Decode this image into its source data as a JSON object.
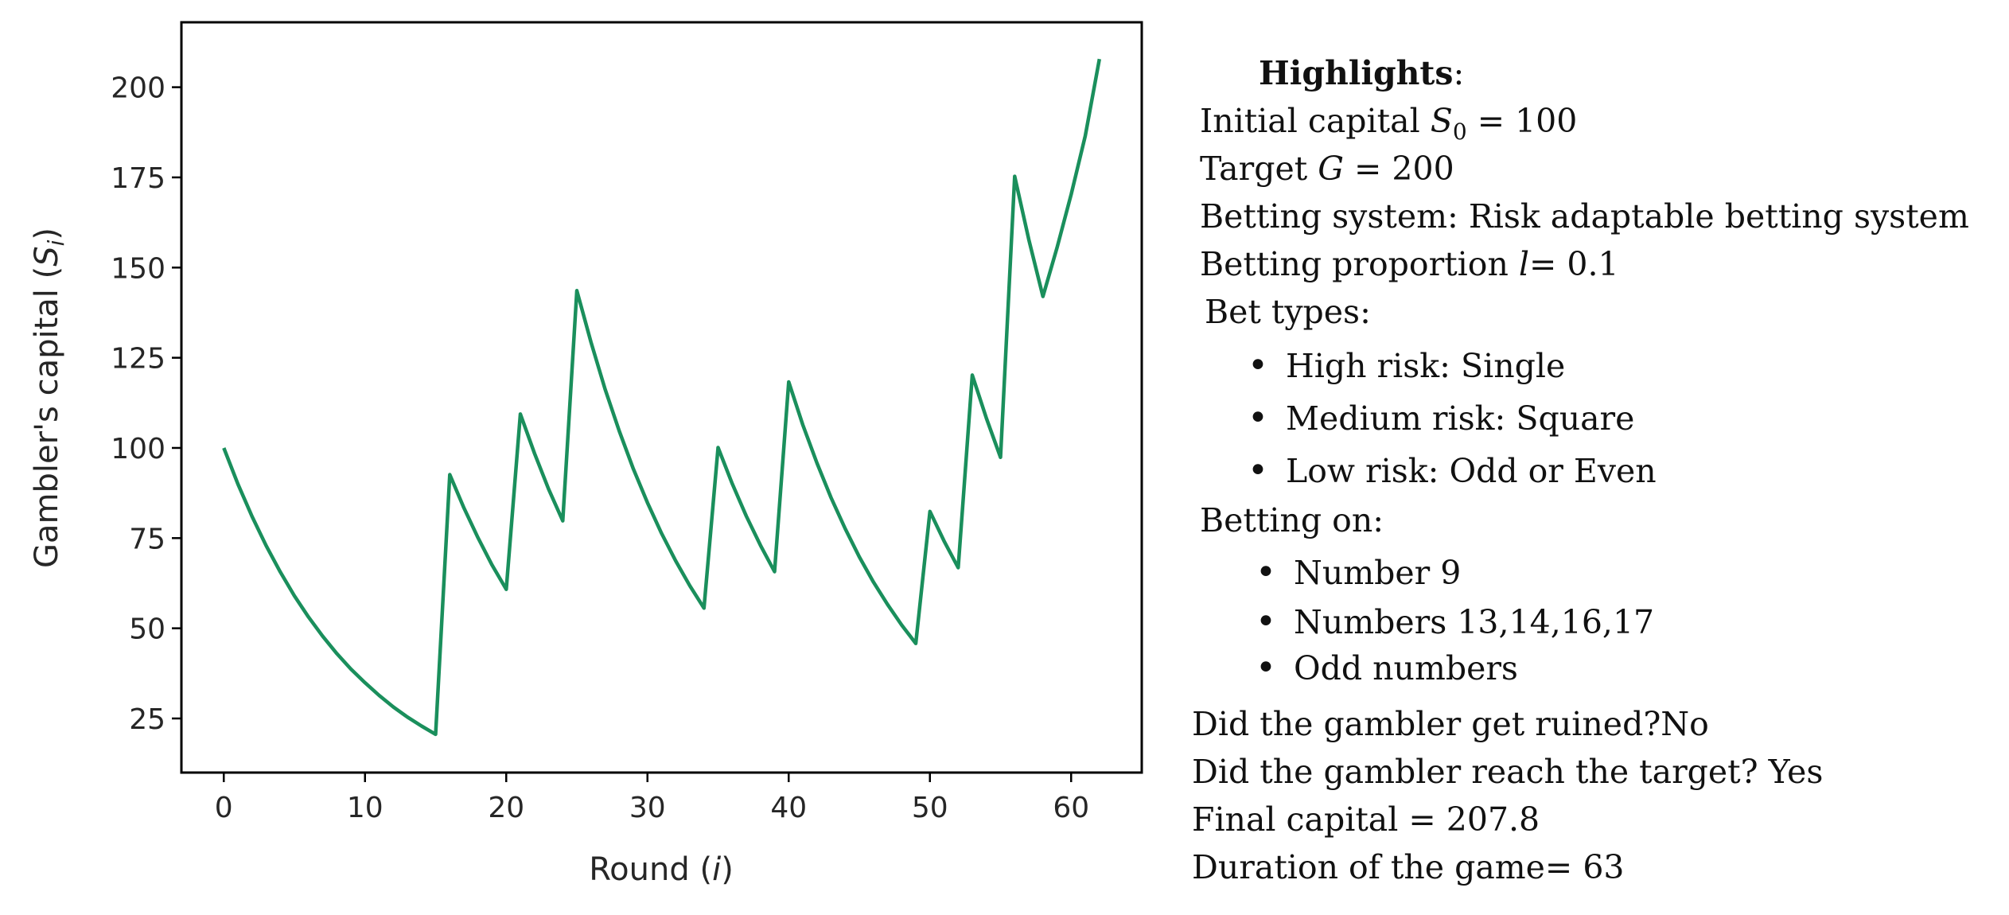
{
  "chart_data": {
    "type": "line",
    "xlabel": "Round (i)",
    "ylabel": "Gambler's capital (S_i)",
    "xlabel_parts": {
      "text": "Round ",
      "var": "i"
    },
    "ylabel_parts": {
      "text": "Gambler's capital ",
      "var": "S",
      "sub": "i"
    },
    "xlim": [
      -3,
      65
    ],
    "ylim": [
      10,
      218
    ],
    "xticks": [
      0,
      10,
      20,
      30,
      40,
      50,
      60
    ],
    "yticks": [
      25,
      50,
      75,
      100,
      125,
      150,
      175,
      200
    ],
    "grid": false,
    "line_color": "#1a8f5c",
    "series": [
      {
        "x": [
          0,
          1,
          2,
          3,
          4,
          5,
          6,
          7,
          8,
          9,
          10,
          11,
          12,
          13,
          14,
          15,
          16,
          17,
          18,
          19,
          20,
          21,
          22,
          23,
          24,
          25,
          26,
          27,
          28,
          29,
          30,
          31,
          32,
          33,
          34,
          35,
          36,
          37,
          38,
          39,
          40,
          41,
          42,
          43,
          44,
          45,
          46,
          47,
          48,
          49,
          50,
          51,
          52,
          53,
          54,
          55,
          56,
          57,
          58,
          59,
          60,
          61,
          62
        ],
        "values": [
          100,
          90,
          81,
          72.9,
          65.6,
          59,
          53.1,
          47.8,
          43,
          38.7,
          34.9,
          31.4,
          28.2,
          25.4,
          22.9,
          20.6,
          92.6,
          83.4,
          75.1,
          67.5,
          60.8,
          109.4,
          98.5,
          88.6,
          79.8,
          143.6,
          129.3,
          116.3,
          104.7,
          94.2,
          84.8,
          76.3,
          68.7,
          61.8,
          55.6,
          100.1,
          90.1,
          81.1,
          73,
          65.7,
          118.3,
          106.4,
          95.8,
          86.2,
          77.6,
          69.8,
          62.8,
          56.6,
          50.9,
          45.8,
          82.4,
          74.2,
          66.8,
          120.2,
          108.2,
          97.4,
          175.3,
          157.8,
          142,
          155.5,
          170.3,
          186.5,
          207.8
        ]
      }
    ]
  },
  "highlights": {
    "title": "Highlights",
    "title_suffix": ":",
    "initial_capital": {
      "label": "Initial capital ",
      "var": "S",
      "sub": "0",
      "eq": " = 100"
    },
    "target": {
      "label": "Target ",
      "var": "G",
      "eq": " = 200"
    },
    "betting_system": "Betting system: Risk adaptable betting system",
    "betting_proportion": {
      "label": "Betting proportion ",
      "var": "l",
      "eq": "= 0.1"
    },
    "bet_types_label": "Bet types:",
    "bet_types": [
      "High risk: Single",
      "Medium risk: Square",
      "Low risk: Odd or Even"
    ],
    "betting_on_label": "Betting on:",
    "betting_on": [
      "Number 9",
      "Numbers 13,14,16,17",
      "Odd numbers"
    ],
    "ruined": "Did the gambler get ruined?No",
    "reached_target": "Did the gambler reach the target? Yes",
    "final_capital": "Final capital = 207.8",
    "duration": "Duration of the game= 63"
  }
}
